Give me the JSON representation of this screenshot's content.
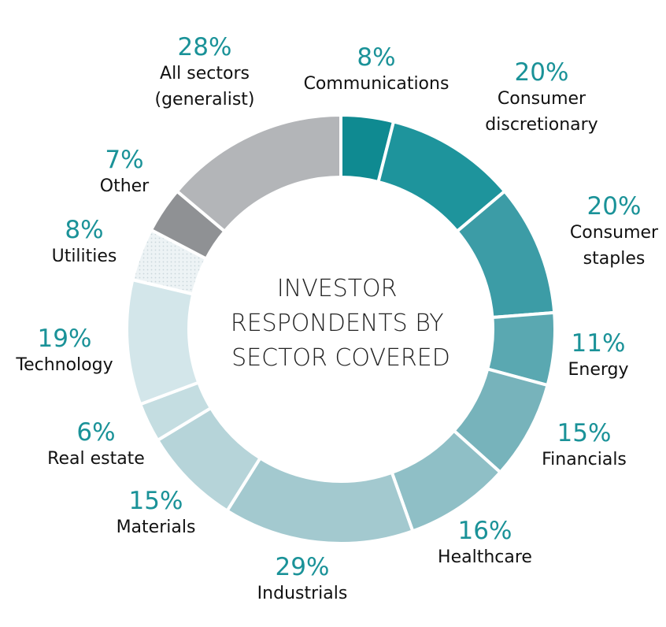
{
  "chart_data": {
    "type": "pie",
    "donut": true,
    "title_lines": [
      "INVESTOR",
      "RESPONDENTS BY",
      "SECTOR COVERED"
    ],
    "slices": [
      {
        "label_lines": [
          "Communications"
        ],
        "value_label": "8%",
        "value": 8,
        "color": "#0f8a91"
      },
      {
        "label_lines": [
          "Consumer",
          "discretionary"
        ],
        "value_label": "20%",
        "value": 20,
        "color": "#1e949c"
      },
      {
        "label_lines": [
          "Consumer",
          "staples"
        ],
        "value_label": "20%",
        "value": 20,
        "color": "#3c9ca6"
      },
      {
        "label_lines": [
          "Energy"
        ],
        "value_label": "11%",
        "value": 11,
        "color": "#5aa8b1"
      },
      {
        "label_lines": [
          "Financials"
        ],
        "value_label": "15%",
        "value": 15,
        "color": "#77b3bb"
      },
      {
        "label_lines": [
          "Healthcare"
        ],
        "value_label": "16%",
        "value": 16,
        "color": "#8fbfc6"
      },
      {
        "label_lines": [
          "Industrials"
        ],
        "value_label": "29%",
        "value": 29,
        "color": "#a3c9cf"
      },
      {
        "label_lines": [
          "Materials"
        ],
        "value_label": "15%",
        "value": 15,
        "color": "#b6d4d9"
      },
      {
        "label_lines": [
          "Real estate"
        ],
        "value_label": "6%",
        "value": 6,
        "color": "#c4dde1"
      },
      {
        "label_lines": [
          "Technology"
        ],
        "value_label": "19%",
        "value": 19,
        "color": "#d3e6ea"
      },
      {
        "label_lines": [
          "Utilities"
        ],
        "value_label": "8%",
        "value": 8,
        "color": "#edf3f5",
        "pattern": "dots"
      },
      {
        "label_lines": [
          "Other"
        ],
        "value_label": "7%",
        "value": 7,
        "color": "#8f9194"
      },
      {
        "label_lines": [
          "All sectors",
          "(generalist)"
        ],
        "value_label": "28%",
        "value": 28,
        "color": "#b3b5b8"
      }
    ]
  }
}
